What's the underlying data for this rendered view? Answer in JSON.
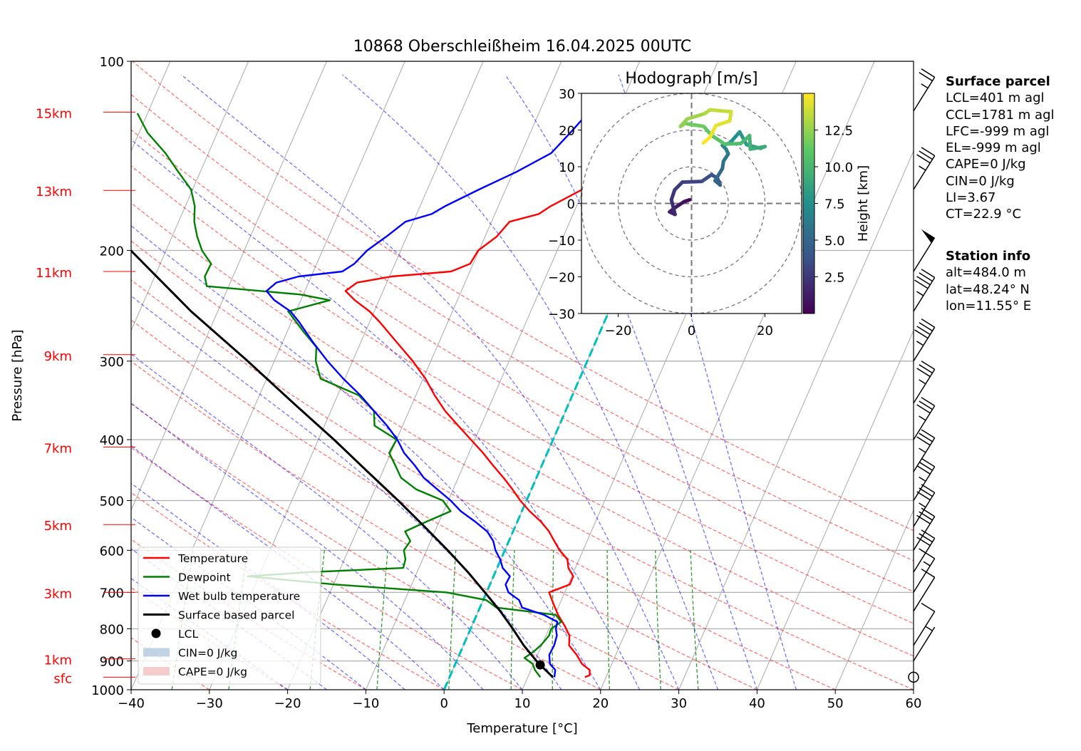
{
  "chart_data": {
    "type": "line",
    "title": "10868 Oberschleißheim 16.04.2025 00UTC",
    "xlabel": "Temperature [°C]",
    "ylabel": "Pressure [hPa]",
    "xlim": [
      -40,
      60
    ],
    "ylim": [
      1000,
      100
    ],
    "y_scale": "log",
    "x_ticks": [
      "−40",
      "−30",
      "−20",
      "−10",
      "0",
      "10",
      "20",
      "30",
      "40",
      "50",
      "60"
    ],
    "x_tick_values": [
      -40,
      -30,
      -20,
      -10,
      0,
      10,
      20,
      30,
      40,
      50,
      60
    ],
    "p_ticks": [
      "100",
      "200",
      "300",
      "400",
      "500",
      "600",
      "700",
      "800",
      "900",
      "1000"
    ],
    "p_tick_values": [
      100,
      200,
      300,
      400,
      500,
      600,
      700,
      800,
      900,
      1000
    ],
    "height_labels": [
      {
        "label": "15km",
        "p": 120.5
      },
      {
        "label": "13km",
        "p": 160.5
      },
      {
        "label": "11km",
        "p": 216
      },
      {
        "label": "9km",
        "p": 293
      },
      {
        "label": "7km",
        "p": 411
      },
      {
        "label": "5km",
        "p": 546
      },
      {
        "label": "3km",
        "p": 700
      },
      {
        "label": "1km",
        "p": 893
      },
      {
        "label": "sfc",
        "p": 955
      }
    ],
    "colors": {
      "temperature": "#ff0000",
      "dewpoint": "#008000",
      "wetbulb": "#0000ff",
      "parcel": "#000000",
      "dry_adiabat": "#ff0000",
      "moist_adiabat": "#0000ff",
      "mixing_ratio": "#008000",
      "freezing": "#00bfbf",
      "cin": "#a6c2da",
      "cape": "#f2b8b8"
    },
    "series": [
      {
        "name": "Temperature",
        "points": [
          [
            955,
            17.3
          ],
          [
            948,
            17.8
          ],
          [
            930,
            17.5
          ],
          [
            910,
            16.2
          ],
          [
            880,
            15.0
          ],
          [
            850,
            13.5
          ],
          [
            820,
            13.0
          ],
          [
            790,
            11.8
          ],
          [
            760,
            10.4
          ],
          [
            730,
            9.2
          ],
          [
            700,
            8.0
          ],
          [
            680,
            10.2
          ],
          [
            660,
            10.2
          ],
          [
            640,
            9.1
          ],
          [
            620,
            8.5
          ],
          [
            600,
            7.0
          ],
          [
            580,
            5.8
          ],
          [
            560,
            4.6
          ],
          [
            540,
            3.0
          ],
          [
            520,
            1.0
          ],
          [
            500,
            -0.8
          ],
          [
            480,
            -2.4
          ],
          [
            460,
            -4.2
          ],
          [
            440,
            -6.2
          ],
          [
            420,
            -8.2
          ],
          [
            400,
            -10.5
          ],
          [
            380,
            -12.9
          ],
          [
            360,
            -15.4
          ],
          [
            340,
            -17.6
          ],
          [
            320,
            -19.7
          ],
          [
            300,
            -22.3
          ],
          [
            280,
            -25.4
          ],
          [
            260,
            -28.7
          ],
          [
            250,
            -30.6
          ],
          [
            240,
            -33.1
          ],
          [
            232,
            -34.8
          ],
          [
            225,
            -33.8
          ],
          [
            220,
            -29.7
          ],
          [
            216,
            -22.4
          ],
          [
            210,
            -20.4
          ],
          [
            200,
            -20.1
          ],
          [
            190,
            -18.5
          ],
          [
            180,
            -17.7
          ],
          [
            175,
            -14.4
          ],
          [
            170,
            -13.3
          ],
          [
            160,
            -10.2
          ],
          [
            150,
            -6.8
          ],
          [
            140,
            -3.8
          ],
          [
            130,
            -3.1
          ],
          [
            120,
            -1.6
          ]
        ]
      },
      {
        "name": "Dewpoint",
        "points": [
          [
            955,
            11.6
          ],
          [
            930,
            10.5
          ],
          [
            910,
            9.9
          ],
          [
            890,
            8.5
          ],
          [
            870,
            9.3
          ],
          [
            850,
            9.9
          ],
          [
            820,
            10.4
          ],
          [
            800,
            10.3
          ],
          [
            780,
            11.2
          ],
          [
            760,
            10.1
          ],
          [
            740,
            2.1
          ],
          [
            720,
            0.4
          ],
          [
            700,
            -5.1
          ],
          [
            680,
            -19.8
          ],
          [
            660,
            -31.4
          ],
          [
            650,
            -23.8
          ],
          [
            640,
            -12.0
          ],
          [
            620,
            -12.2
          ],
          [
            600,
            -12.9
          ],
          [
            580,
            -12.6
          ],
          [
            560,
            -13.8
          ],
          [
            540,
            -11.6
          ],
          [
            520,
            -9.1
          ],
          [
            500,
            -10.7
          ],
          [
            480,
            -14.7
          ],
          [
            460,
            -17.3
          ],
          [
            440,
            -18.7
          ],
          [
            420,
            -20.2
          ],
          [
            400,
            -20.0
          ],
          [
            380,
            -23.6
          ],
          [
            360,
            -24.5
          ],
          [
            340,
            -27.3
          ],
          [
            320,
            -33.1
          ],
          [
            300,
            -34.7
          ],
          [
            285,
            -35.4
          ],
          [
            270,
            -37.8
          ],
          [
            250,
            -41.0
          ],
          [
            240,
            -36.3
          ],
          [
            235,
            -40.4
          ],
          [
            228,
            -52.8
          ],
          [
            220,
            -53.6
          ],
          [
            210,
            -53.5
          ],
          [
            200,
            -55.4
          ],
          [
            190,
            -56.8
          ],
          [
            180,
            -58.0
          ],
          [
            170,
            -58.8
          ],
          [
            160,
            -60.2
          ],
          [
            150,
            -62.8
          ],
          [
            140,
            -65.5
          ],
          [
            130,
            -68.9
          ],
          [
            121,
            -71.3
          ]
        ]
      },
      {
        "name": "Wet bulb temperature",
        "points": [
          [
            955,
            13.4
          ],
          [
            930,
            13.1
          ],
          [
            910,
            12.1
          ],
          [
            880,
            11.5
          ],
          [
            850,
            11.6
          ],
          [
            820,
            11.4
          ],
          [
            800,
            10.9
          ],
          [
            780,
            10.7
          ],
          [
            760,
            8.6
          ],
          [
            740,
            5.4
          ],
          [
            720,
            4.6
          ],
          [
            700,
            2.8
          ],
          [
            680,
            2.0
          ],
          [
            660,
            2.1
          ],
          [
            640,
            0.7
          ],
          [
            620,
            -0.1
          ],
          [
            600,
            -1.2
          ],
          [
            580,
            -2.0
          ],
          [
            560,
            -3.3
          ],
          [
            540,
            -5.4
          ],
          [
            520,
            -7.8
          ],
          [
            500,
            -9.7
          ],
          [
            480,
            -12.0
          ],
          [
            460,
            -14.4
          ],
          [
            440,
            -16.2
          ],
          [
            420,
            -18.3
          ],
          [
            400,
            -19.9
          ],
          [
            380,
            -22.0
          ],
          [
            360,
            -24.5
          ],
          [
            340,
            -27.1
          ],
          [
            320,
            -30.2
          ],
          [
            300,
            -33.2
          ],
          [
            280,
            -36.1
          ],
          [
            260,
            -39.0
          ],
          [
            250,
            -40.7
          ],
          [
            240,
            -43.4
          ],
          [
            232,
            -44.9
          ],
          [
            225,
            -44.1
          ],
          [
            220,
            -41.6
          ],
          [
            216,
            -36.3
          ],
          [
            210,
            -35.2
          ],
          [
            200,
            -34.3
          ],
          [
            190,
            -32.6
          ],
          [
            180,
            -31.0
          ],
          [
            175,
            -28.1
          ],
          [
            170,
            -26.8
          ],
          [
            160,
            -23.4
          ],
          [
            150,
            -19.6
          ],
          [
            140,
            -16.2
          ],
          [
            130,
            -14.9
          ],
          [
            120,
            -13.6
          ]
        ]
      },
      {
        "name": "Surface based parcel",
        "points": [
          [
            955,
            13.2
          ],
          [
            913,
            10.9
          ],
          [
            900,
            10.2
          ],
          [
            850,
            7.7
          ],
          [
            800,
            5.4
          ],
          [
            750,
            2.8
          ],
          [
            700,
            -0.2
          ],
          [
            650,
            -3.5
          ],
          [
            600,
            -7.3
          ],
          [
            550,
            -11.6
          ],
          [
            500,
            -16.4
          ],
          [
            450,
            -21.9
          ],
          [
            400,
            -28.0
          ],
          [
            350,
            -35.2
          ],
          [
            300,
            -43.4
          ],
          [
            250,
            -53.4
          ],
          [
            200,
            -64.5
          ],
          [
            175,
            -70.7
          ],
          [
            150,
            -77.7
          ],
          [
            130,
            -83.8
          ],
          [
            120,
            -87.1
          ],
          [
            110,
            -90.8
          ],
          [
            104,
            -93.1
          ]
        ]
      }
    ],
    "lcl": {
      "p": 913,
      "t": 10.9,
      "label": "LCL"
    },
    "freezing_level": [
      [
        1000,
        0
      ],
      [
        115,
        0
      ]
    ],
    "dry_adiabats": [
      -30,
      -20,
      -10,
      0,
      10,
      20,
      30,
      40,
      50,
      60,
      70,
      80,
      90,
      100,
      110
    ],
    "moist_adiabats": [
      -20,
      -15,
      -10,
      -5,
      0,
      5,
      10,
      15,
      20,
      25,
      30,
      35,
      40,
      45
    ],
    "mixing_ratios": [
      0.2,
      0.4,
      1,
      2,
      4,
      7,
      10,
      16,
      24,
      32
    ],
    "legend": {
      "placement": "lower-left",
      "entries": [
        "Temperature",
        "Dewpoint",
        "Wet bulb temperature",
        "Surface based parcel",
        "LCL",
        "CIN=0 J/kg",
        "CAPE=0 J/kg"
      ]
    },
    "wind_barbs": [
      {
        "p": 120,
        "speed_kt": 25
      },
      {
        "p": 160,
        "speed_kt": 35
      },
      {
        "p": 216,
        "speed_kt": 50
      },
      {
        "p": 250,
        "speed_kt": 45
      },
      {
        "p": 300,
        "speed_kt": 45
      },
      {
        "p": 350,
        "speed_kt": 35
      },
      {
        "p": 400,
        "speed_kt": 35
      },
      {
        "p": 450,
        "speed_kt": 35
      },
      {
        "p": 500,
        "speed_kt": 35
      },
      {
        "p": 550,
        "speed_kt": 35
      },
      {
        "p": 600,
        "speed_kt": 30
      },
      {
        "p": 650,
        "speed_kt": 35
      },
      {
        "p": 700,
        "speed_kt": 15
      },
      {
        "p": 750,
        "speed_kt": 10
      },
      {
        "p": 850,
        "speed_kt": 10
      },
      {
        "p": 900,
        "speed_kt": 5
      },
      {
        "p": 955,
        "speed_kt": 0
      }
    ],
    "hodograph": {
      "title": "Hodograph [m/s]",
      "xlim": [
        -30,
        30
      ],
      "ylim": [
        -30,
        30
      ],
      "ticks": [
        -20,
        0,
        20
      ],
      "tick_labels": [
        "−20",
        "0",
        "20"
      ],
      "y_ticks": [
        30,
        20,
        10,
        0,
        -10,
        -20,
        -30
      ],
      "y_tick_labels": [
        "30",
        "20",
        "10",
        "0",
        "−10",
        "−20",
        "−30"
      ],
      "rings": [
        10,
        20,
        30
      ],
      "colorbar_label": "Height [km]",
      "colorbar_ticks": [
        "2.5",
        "5.0",
        "7.5",
        "10.0",
        "12.5"
      ],
      "colorbar_values": [
        2.5,
        5.0,
        7.5,
        10.0,
        12.5
      ],
      "height_range": [
        0,
        15
      ],
      "points": [
        [
          0,
          -0.5,
          1
        ],
        [
          0.5,
          -2,
          0.5
        ],
        [
          0.8,
          -4,
          -0.8
        ],
        [
          1.2,
          -6,
          -2.3
        ],
        [
          1.5,
          -4.5,
          -3.0
        ],
        [
          1.9,
          -5.5,
          1.0
        ],
        [
          2.3,
          -4.6,
          3.7
        ],
        [
          2.7,
          -2.5,
          5.8
        ],
        [
          3.1,
          2.8,
          6.0
        ],
        [
          3.5,
          5.4,
          7.8
        ],
        [
          3.9,
          7.0,
          7.0
        ],
        [
          4.3,
          7.8,
          5.0
        ],
        [
          4.7,
          6.4,
          6.2
        ],
        [
          5.1,
          8.4,
          9.5
        ],
        [
          5.5,
          8.7,
          11.5
        ],
        [
          5.9,
          10.0,
          13.5
        ],
        [
          6.3,
          9.4,
          14.8
        ],
        [
          6.7,
          8.4,
          15.8
        ],
        [
          7.1,
          10.5,
          16.5
        ],
        [
          7.5,
          13.1,
          19.5
        ],
        [
          7.9,
          15.0,
          16.0
        ],
        [
          8.4,
          18.8,
          15.0
        ],
        [
          8.8,
          20.0,
          15.5
        ],
        [
          9.2,
          16.0,
          14.8
        ],
        [
          9.6,
          15.8,
          18.5
        ],
        [
          10.0,
          13.4,
          16.3
        ],
        [
          10.4,
          9.0,
          16.2
        ],
        [
          10.8,
          5.5,
          18.5
        ],
        [
          11.2,
          3.3,
          21.0
        ],
        [
          11.6,
          -1.8,
          21.8
        ],
        [
          12.0,
          -3.0,
          21.0
        ],
        [
          12.4,
          -1.2,
          23.0
        ],
        [
          12.8,
          3.6,
          24.5
        ],
        [
          13.2,
          5.0,
          25.5
        ],
        [
          13.6,
          10.8,
          25.0
        ],
        [
          14.0,
          10.4,
          22.5
        ],
        [
          14.3,
          6.6,
          21.2
        ],
        [
          14.6,
          5.0,
          18.0
        ],
        [
          14.9,
          3.2,
          16.5
        ]
      ]
    },
    "side_panel": {
      "surface_title": "Surface parcel",
      "surface_lines": [
        "LCL=401 m agl",
        "CCL=1781 m agl",
        "LFC=-999 m agl",
        "EL=-999 m agl",
        "CAPE=0 J/kg",
        "CIN=0 J/kg",
        "LI=3.67",
        "CT=22.9 °C"
      ],
      "station_title": "Station info",
      "station_lines": [
        "alt=484.0 m",
        "lat=48.24° N",
        "lon=11.55° E"
      ]
    }
  }
}
